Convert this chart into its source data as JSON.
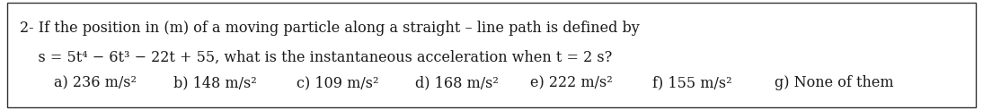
{
  "line1": "2- If the position in (m) of a moving particle along a straight – line path is defined by",
  "line2": "    s = 5t⁴ − 6t³ − 22t + 55, what is the instantaneous acceleration when t = 2 s?",
  "opt_a": "a) 236 m/s²",
  "opt_b": "b) 148 m/s²",
  "opt_c": "c) 109 m/s²",
  "opt_d": "d) 168 m/s²",
  "opt_e": "e) 222 m/s²",
  "opt_f": "f) 155 m/s²",
  "opt_g": "g) None of them",
  "background": "#ffffff",
  "border_color": "#333333",
  "text_color": "#1a1a1a",
  "font_size_main": 11.5,
  "font_size_options": 11.5
}
